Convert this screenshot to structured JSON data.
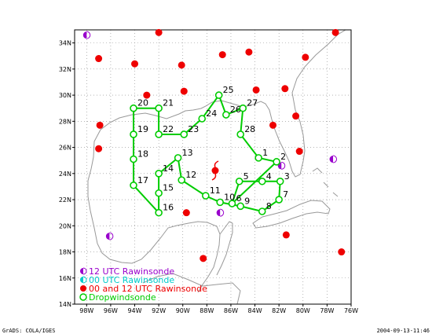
{
  "map": {
    "lon_range": [
      -99,
      -76
    ],
    "lat_range": [
      14,
      35
    ],
    "x_ticks": [
      {
        "lon": -98,
        "label": "98W"
      },
      {
        "lon": -96,
        "label": "96W"
      },
      {
        "lon": -94,
        "label": "94W"
      },
      {
        "lon": -92,
        "label": "92W"
      },
      {
        "lon": -90,
        "label": "90W"
      },
      {
        "lon": -88,
        "label": "88W"
      },
      {
        "lon": -86,
        "label": "86W"
      },
      {
        "lon": -84,
        "label": "84W"
      },
      {
        "lon": -82,
        "label": "82W"
      },
      {
        "lon": -80,
        "label": "80W"
      },
      {
        "lon": -78,
        "label": "78W"
      },
      {
        "lon": -76,
        "label": "76W"
      }
    ],
    "y_ticks": [
      {
        "lat": 34,
        "label": "34N"
      },
      {
        "lat": 32,
        "label": "32N"
      },
      {
        "lat": 30,
        "label": "30N"
      },
      {
        "lat": 28,
        "label": "28N"
      },
      {
        "lat": 26,
        "label": "26N"
      },
      {
        "lat": 24,
        "label": "24N"
      },
      {
        "lat": 22,
        "label": "22N"
      },
      {
        "lat": 20,
        "label": "20N"
      },
      {
        "lat": 18,
        "label": "18N"
      },
      {
        "lat": 16,
        "label": "16N"
      },
      {
        "lat": 14,
        "label": "14N"
      }
    ],
    "grid": "dotted",
    "colors": {
      "track": "#00cc00",
      "rawin_12": "#9900cc",
      "rawin_00": "#00cccc",
      "rawin_00_12": "#ee0000",
      "coast": "#999999"
    }
  },
  "legend": [
    {
      "label": "12 UTC Rawinsonde",
      "color": "#9900cc",
      "symbol": "half-circle"
    },
    {
      "label": "00 UTC Rawinsonde",
      "color": "#00cccc",
      "symbol": "half-circle"
    },
    {
      "label": "00 and 12 UTC Rawinsonde",
      "color": "#ee0000",
      "symbol": "circle"
    },
    {
      "label": "Dropwindsonde",
      "color": "#00cc00",
      "symbol": "ring"
    }
  ],
  "dropwindsondes": [
    {
      "id": "1",
      "lon": -83.7,
      "lat": 25.2
    },
    {
      "id": "2",
      "lon": -82.2,
      "lat": 24.9
    },
    {
      "id": "3",
      "lon": -81.9,
      "lat": 23.4
    },
    {
      "id": "4",
      "lon": -83.4,
      "lat": 23.4
    },
    {
      "id": "5",
      "lon": -85.3,
      "lat": 23.4
    },
    {
      "id": "6",
      "lon": -85.9,
      "lat": 21.7
    },
    {
      "id": "7",
      "lon": -82.0,
      "lat": 22.0
    },
    {
      "id": "8",
      "lon": -83.4,
      "lat": 21.1
    },
    {
      "id": "9",
      "lon": -85.2,
      "lat": 21.5
    },
    {
      "id": "10",
      "lon": -86.9,
      "lat": 21.8
    },
    {
      "id": "11",
      "lon": -88.1,
      "lat": 22.3
    },
    {
      "id": "12",
      "lon": -90.1,
      "lat": 23.5
    },
    {
      "id": "13",
      "lon": -90.4,
      "lat": 25.2
    },
    {
      "id": "14",
      "lon": -92.0,
      "lat": 24.0
    },
    {
      "id": "15",
      "lon": -92.0,
      "lat": 22.5
    },
    {
      "id": "16",
      "lon": -92.0,
      "lat": 21.0
    },
    {
      "id": "17",
      "lon": -94.1,
      "lat": 23.1
    },
    {
      "id": "18",
      "lon": -94.1,
      "lat": 25.1
    },
    {
      "id": "19",
      "lon": -94.1,
      "lat": 27.0
    },
    {
      "id": "20",
      "lon": -94.1,
      "lat": 29.0
    },
    {
      "id": "21",
      "lon": -92.0,
      "lat": 29.0
    },
    {
      "id": "22",
      "lon": -92.0,
      "lat": 27.0
    },
    {
      "id": "23",
      "lon": -89.9,
      "lat": 27.0
    },
    {
      "id": "24",
      "lon": -88.4,
      "lat": 28.2
    },
    {
      "id": "25",
      "lon": -87.0,
      "lat": 30.0
    },
    {
      "id": "26",
      "lon": -86.4,
      "lat": 28.5
    },
    {
      "id": "27",
      "lon": -85.0,
      "lat": 29.0
    },
    {
      "id": "28",
      "lon": -85.2,
      "lat": 27.0
    }
  ],
  "track_order": [
    "25",
    "24",
    "23",
    "22",
    "21",
    "20",
    "19",
    "18",
    "17",
    "16",
    "15",
    "14",
    "13",
    "12",
    "11",
    "10",
    "9",
    "8",
    "7",
    "3",
    "4",
    "5",
    "6",
    "2",
    "1",
    "28",
    "27",
    "26",
    "25"
  ],
  "rawinsondes": [
    {
      "type": "12",
      "lon": -98.0,
      "lat": 34.6
    },
    {
      "type": "00_12",
      "lon": -92.0,
      "lat": 34.8
    },
    {
      "type": "00_12",
      "lon": -77.3,
      "lat": 34.8
    },
    {
      "type": "00_12",
      "lon": -97.0,
      "lat": 32.8
    },
    {
      "type": "00_12",
      "lon": -94.0,
      "lat": 32.4
    },
    {
      "type": "00_12",
      "lon": -90.1,
      "lat": 32.3
    },
    {
      "type": "00_12",
      "lon": -86.7,
      "lat": 33.1
    },
    {
      "type": "00_12",
      "lon": -84.5,
      "lat": 33.3
    },
    {
      "type": "00_12",
      "lon": -79.8,
      "lat": 32.9
    },
    {
      "type": "00_12",
      "lon": -93.0,
      "lat": 30.0
    },
    {
      "type": "00_12",
      "lon": -89.9,
      "lat": 30.3
    },
    {
      "type": "00_12",
      "lon": -83.9,
      "lat": 30.4
    },
    {
      "type": "00_12",
      "lon": -81.5,
      "lat": 30.5
    },
    {
      "type": "00_12",
      "lon": -80.6,
      "lat": 28.4
    },
    {
      "type": "00_12",
      "lon": -82.5,
      "lat": 27.7
    },
    {
      "type": "00_12",
      "lon": -96.9,
      "lat": 27.7
    },
    {
      "type": "00_12",
      "lon": -97.0,
      "lat": 25.9
    },
    {
      "type": "00_12",
      "lon": -80.3,
      "lat": 25.7
    },
    {
      "type": "12",
      "lon": -81.8,
      "lat": 24.6
    },
    {
      "type": "12",
      "lon": -77.5,
      "lat": 25.1
    },
    {
      "type": "00_12",
      "lon": -89.7,
      "lat": 21.0
    },
    {
      "type": "12",
      "lon": -86.9,
      "lat": 21.0
    },
    {
      "type": "12",
      "lon": -96.1,
      "lat": 19.2
    },
    {
      "type": "00_12",
      "lon": -81.4,
      "lat": 19.3
    },
    {
      "type": "00_12",
      "lon": -88.3,
      "lat": 17.5
    },
    {
      "type": "00_12",
      "lon": -76.8,
      "lat": 18.0
    }
  ],
  "footer": {
    "left": "GrADS: COLA/IGES",
    "right": "2004-09-13-11:46"
  }
}
